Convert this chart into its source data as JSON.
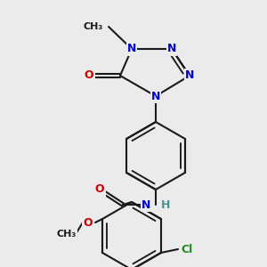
{
  "background_color": "#ebebeb",
  "bond_color": "#1a1a1a",
  "bond_width": 1.5,
  "atom_colors": {
    "N": "#0000cc",
    "O": "#cc0000",
    "Cl": "#228b22",
    "C": "#1a1a1a",
    "H": "#4a9090"
  },
  "figsize": [
    3.0,
    3.0
  ],
  "dpi": 100
}
